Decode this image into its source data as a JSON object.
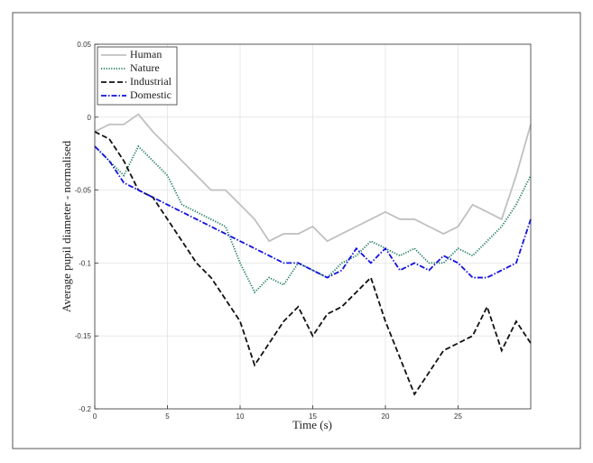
{
  "chart_data": {
    "type": "line",
    "xlabel": "Time (s)",
    "ylabel": "Average pupil diameter - normalised",
    "x": [
      0,
      1,
      2,
      3,
      4,
      5,
      6,
      7,
      8,
      9,
      10,
      11,
      12,
      13,
      14,
      15,
      16,
      17,
      18,
      19,
      20,
      21,
      22,
      23,
      24,
      25,
      26,
      27,
      28,
      29,
      30
    ],
    "xlim": [
      0,
      30
    ],
    "xticks": [
      0,
      5,
      10,
      15,
      20,
      25
    ],
    "ylim": [
      -0.2,
      0.05
    ],
    "yticks": [
      0.05,
      0,
      -0.05,
      -0.1,
      -0.15,
      -0.2
    ],
    "grid": true,
    "legend": "upper left",
    "series": [
      {
        "name": "Human",
        "color": "#c0c0c0",
        "linestyle": "solid",
        "values": [
          -0.01,
          -0.005,
          -0.005,
          0.002,
          -0.01,
          -0.02,
          -0.03,
          -0.04,
          -0.05,
          -0.05,
          -0.06,
          -0.07,
          -0.085,
          -0.08,
          -0.08,
          -0.075,
          -0.085,
          -0.08,
          -0.075,
          -0.07,
          -0.065,
          -0.07,
          -0.07,
          -0.075,
          -0.08,
          -0.075,
          -0.06,
          -0.065,
          -0.07,
          -0.04,
          -0.005
        ]
      },
      {
        "name": "Nature",
        "color": "#1a7a5a",
        "linestyle": "dotted",
        "values": [
          -0.02,
          -0.03,
          -0.04,
          -0.02,
          -0.03,
          -0.04,
          -0.06,
          -0.065,
          -0.07,
          -0.075,
          -0.1,
          -0.12,
          -0.11,
          -0.115,
          -0.1,
          -0.105,
          -0.11,
          -0.1,
          -0.095,
          -0.085,
          -0.09,
          -0.095,
          -0.09,
          -0.1,
          -0.1,
          -0.09,
          -0.095,
          -0.085,
          -0.075,
          -0.06,
          -0.04
        ]
      },
      {
        "name": "Industrial",
        "color": "#111111",
        "linestyle": "dashed",
        "values": [
          -0.01,
          -0.015,
          -0.03,
          -0.05,
          -0.055,
          -0.07,
          -0.085,
          -0.1,
          -0.11,
          -0.125,
          -0.14,
          -0.17,
          -0.155,
          -0.14,
          -0.13,
          -0.15,
          -0.135,
          -0.13,
          -0.12,
          -0.11,
          -0.14,
          -0.165,
          -0.19,
          -0.175,
          -0.16,
          -0.155,
          -0.15,
          -0.13,
          -0.16,
          -0.14,
          -0.155
        ]
      },
      {
        "name": "Domestic",
        "color": "#1010e0",
        "linestyle": "dashdot",
        "values": [
          -0.02,
          -0.03,
          -0.045,
          -0.05,
          -0.055,
          -0.06,
          -0.065,
          -0.07,
          -0.075,
          -0.08,
          -0.085,
          -0.09,
          -0.095,
          -0.1,
          -0.1,
          -0.105,
          -0.11,
          -0.105,
          -0.09,
          -0.1,
          -0.09,
          -0.105,
          -0.1,
          -0.105,
          -0.095,
          -0.1,
          -0.11,
          -0.11,
          -0.105,
          -0.1,
          -0.07
        ]
      }
    ]
  }
}
